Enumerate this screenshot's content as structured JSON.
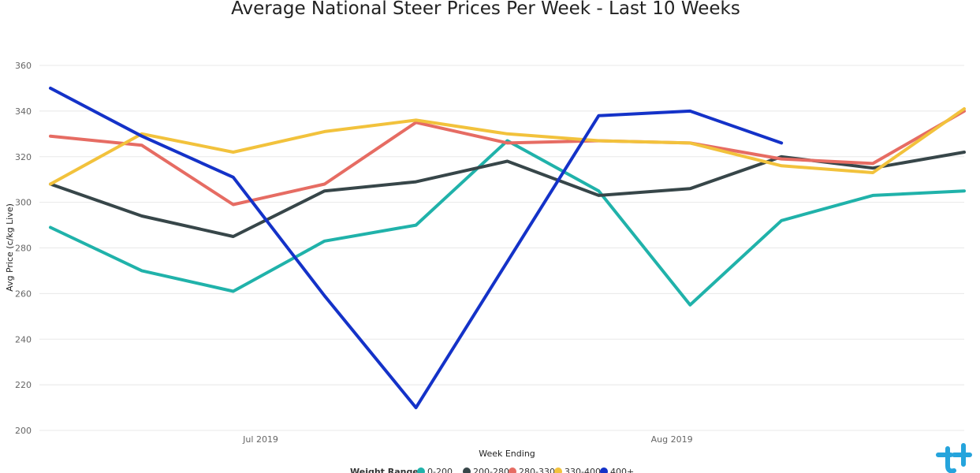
{
  "chart_data": {
    "type": "line",
    "title": "Average National Steer Prices Per Week - Last 10 Weeks",
    "xlabel": "Week Ending",
    "ylabel": "Avg Price (c/kg Live)",
    "ylim": [
      200,
      360
    ],
    "yticks": [
      200,
      220,
      240,
      260,
      280,
      300,
      320,
      340,
      360
    ],
    "x_tick_labels": [
      {
        "label": "Jul 2019",
        "at": 2.3
      },
      {
        "label": "Aug 2019",
        "at": 6.8
      }
    ],
    "grid": true,
    "legend": {
      "title": "Weight Range",
      "placement": "bottom"
    },
    "series": [
      {
        "name": "0-200",
        "color": "#20b2aa",
        "values": [
          289,
          270,
          261,
          283,
          290,
          327,
          305,
          255,
          292,
          303,
          305
        ]
      },
      {
        "name": "200-280",
        "color": "#374649",
        "values": [
          308,
          294,
          285,
          305,
          309,
          318,
          303,
          306,
          320,
          315,
          322
        ]
      },
      {
        "name": "280-330",
        "color": "#e66c63",
        "values": [
          329,
          325,
          299,
          308,
          335,
          326,
          327,
          326,
          319,
          317,
          340
        ]
      },
      {
        "name": "330-400",
        "color": "#f2c23c",
        "values": [
          308,
          330,
          322,
          331,
          336,
          330,
          327,
          326,
          316,
          313,
          341
        ]
      },
      {
        "name": "400+",
        "color": "#1432c8",
        "values": [
          350,
          329,
          311,
          259,
          210,
          274,
          338,
          340,
          326,
          null,
          null
        ]
      }
    ]
  },
  "logo": {
    "name": "brand-logo-icon",
    "color": "#25a4dc"
  }
}
